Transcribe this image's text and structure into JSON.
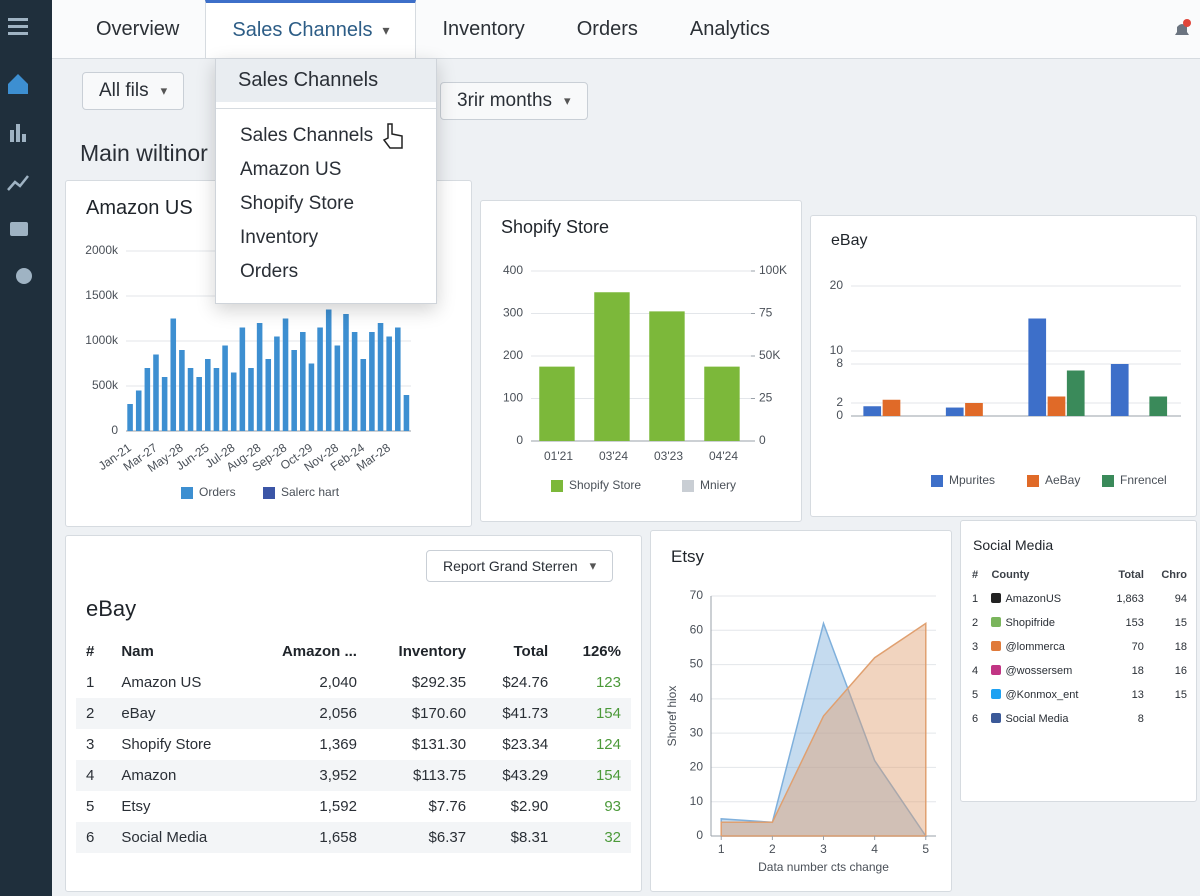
{
  "tabs": [
    "Overview",
    "Sales Channels",
    "Inventory",
    "Orders",
    "Analytics"
  ],
  "dropdown": {
    "hover": "Sales Channels",
    "items": [
      "Sales Channels",
      "Amazon US",
      "Shopify Store",
      "Inventory",
      "Orders"
    ]
  },
  "filters": [
    "All fils",
    "3rir months"
  ],
  "section_title": "Main wiltinor",
  "chart_data": [
    {
      "type": "bar",
      "title": "Amazon US",
      "categories": [
        "Jan-21",
        null,
        null,
        "Mar-27",
        null,
        null,
        "May-28",
        null,
        null,
        "Jun-25",
        null,
        null,
        "Jul-28",
        null,
        null,
        "Aug-28",
        null,
        null,
        "Sep-28",
        null,
        null,
        "Oct-29",
        null,
        null,
        "Nov-28",
        null,
        null,
        "Feb-24",
        null,
        null,
        "Mar-28",
        null,
        null
      ],
      "series": [
        {
          "name": "Orders",
          "color": "#3d8fd1",
          "values": [
            300,
            450,
            700,
            850,
            600,
            1250,
            900,
            700,
            600,
            800,
            700,
            950,
            650,
            1150,
            700,
            1200,
            800,
            1050,
            1250,
            900,
            1100,
            750,
            1150,
            1350,
            950,
            1300,
            1100,
            800,
            1100,
            1200,
            1050,
            1150,
            400
          ]
        },
        {
          "name": "Salerc hart",
          "color": "#3b55a6",
          "values": [
            null,
            null,
            null,
            null,
            null,
            null,
            null,
            null,
            null,
            null,
            null,
            null,
            null,
            null,
            null,
            null,
            null,
            null,
            null,
            null,
            null,
            null,
            null,
            null,
            null,
            null,
            null,
            null,
            null,
            null,
            null,
            null,
            null
          ]
        }
      ],
      "ylim": [
        0,
        2000
      ],
      "yticks": [
        0,
        {
          "value": 500,
          "label": "500k"
        },
        {
          "value": 1000,
          "label": "1000k"
        },
        {
          "value": 1500,
          "label": "1500k"
        },
        {
          "value": 2000,
          "label": "2000k"
        }
      ],
      "grid": true
    },
    {
      "type": "bar",
      "title": "Shopify Store",
      "categories": [
        "01'21",
        "03'24",
        "03'23",
        "04'24"
      ],
      "series": [
        {
          "name": "Shopify Store",
          "color": "#7cb83a",
          "values": [
            175,
            350,
            305,
            175
          ]
        },
        {
          "name": "Mniery",
          "color": "#c9ced4",
          "values": [
            null,
            null,
            null,
            null
          ]
        }
      ],
      "ylim": [
        0,
        400
      ],
      "yticks": [
        0,
        100,
        200,
        300,
        400
      ],
      "y2lim": [
        0,
        100
      ],
      "y2ticks": [
        0,
        25,
        {
          "value": 50,
          "label": "50K"
        },
        75,
        {
          "value": 100,
          "label": "100K"
        }
      ],
      "grid": true
    },
    {
      "type": "bar",
      "title": "eBay",
      "categories": [
        null,
        null,
        null,
        null
      ],
      "series": [
        {
          "name": "Mpurites",
          "color": "#3d6fc9",
          "values": [
            1.5,
            1.3,
            15,
            8
          ]
        },
        {
          "name": "AeBay",
          "color": "#e06a28",
          "values": [
            2.5,
            2,
            3,
            null
          ]
        },
        {
          "name": "Fnrencel",
          "color": "#3a8a5a",
          "values": [
            null,
            null,
            7,
            3
          ]
        }
      ],
      "ylim": [
        0,
        20
      ],
      "yticks": [
        0,
        2,
        8,
        10,
        20
      ],
      "grid": true
    },
    {
      "type": "area",
      "title": "Etsy",
      "x": [
        1,
        2,
        3,
        4,
        5
      ],
      "series": [
        {
          "color": "#7fb0dc",
          "values": [
            5,
            4,
            62,
            22,
            0
          ]
        },
        {
          "color": "#e0a070",
          "values": [
            4,
            4,
            35,
            52,
            62
          ]
        }
      ],
      "xlim": [
        0.8,
        5.2
      ],
      "xticks": [
        1,
        2,
        3,
        4,
        5
      ],
      "ylim": [
        0,
        70
      ],
      "yticks": [
        0,
        10,
        20,
        30,
        40,
        50,
        60,
        70
      ],
      "xlabel": "Data number cts change",
      "ylabel": "Shoref hiox",
      "grid": true
    }
  ],
  "ebay_table": {
    "title": "eBay",
    "button": "Report Grand Sterren",
    "columns": [
      "#",
      "Nam",
      "Amazon ...",
      "Inventory",
      "Total",
      "126%"
    ],
    "rows": [
      [
        1,
        "Amazon US",
        "2,040",
        "$292.35",
        "$24.76",
        123
      ],
      [
        2,
        "eBay",
        "2,056",
        "$170.60",
        "$41.73",
        154
      ],
      [
        3,
        "Shopify Store",
        "1,369",
        "$131.30",
        "$23.34",
        124
      ],
      [
        4,
        "Amazon",
        "3,952",
        "$113.75",
        "$43.29",
        154
      ],
      [
        5,
        "Etsy",
        "1,592",
        "$7.76",
        "$2.90",
        93
      ],
      [
        6,
        "Social Media",
        "1,658",
        "$6.37",
        "$8.31",
        32
      ]
    ]
  },
  "social_table": {
    "title": "Social Media",
    "columns": [
      "#",
      "County",
      "Total",
      "Chro"
    ],
    "rows": [
      [
        1,
        "AmazonUS",
        "1,863",
        94
      ],
      [
        2,
        "Shopifride",
        153,
        15
      ],
      [
        3,
        "@lommerca",
        70,
        18
      ],
      [
        4,
        "@wossersem",
        18,
        16
      ],
      [
        5,
        "@Konmox_ent",
        13,
        15
      ],
      [
        6,
        "Social Media",
        8
      ]
    ]
  }
}
